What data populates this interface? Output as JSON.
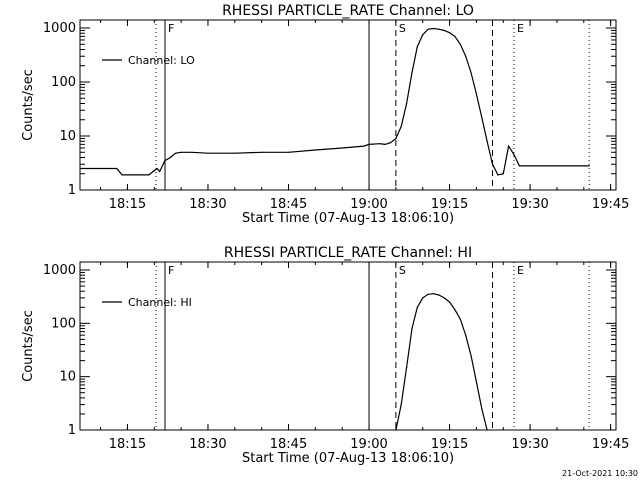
{
  "chart_data": [
    {
      "type": "line",
      "title": "RHESSI PARTICLE_RATE Channel: LO",
      "xlabel": "Start Time (07-Aug-13 18:06:10)",
      "ylabel": "Counts/sec",
      "yscale": "log",
      "ylim": [
        1,
        1000
      ],
      "xlim": [
        "18:06:10",
        "19:46:00"
      ],
      "x_ticks": [
        "18:15",
        "18:30",
        "18:45",
        "19:00",
        "19:15",
        "19:30",
        "19:45"
      ],
      "y_ticks": [
        "1",
        "10",
        "100",
        "1000"
      ],
      "legend": {
        "position": "top-left",
        "entries": [
          "Channel: LO"
        ]
      },
      "markers": [
        {
          "label": "",
          "time": "18:20:20",
          "style": "dotted"
        },
        {
          "label": "F",
          "time": "18:22:00",
          "style": "solid"
        },
        {
          "label": "",
          "time": "19:00:00",
          "style": "solid"
        },
        {
          "label": "S",
          "time": "19:05:00",
          "style": "dashed"
        },
        {
          "label": "",
          "time": "19:23:00",
          "style": "dashed"
        },
        {
          "label": "E",
          "time": "19:27:00",
          "style": "dotted"
        },
        {
          "label": "",
          "time": "19:41:00",
          "style": "dotted"
        }
      ],
      "series": [
        {
          "name": "Channel: LO",
          "x": [
            "18:06:10",
            "18:13:00",
            "18:14:00",
            "18:19:00",
            "18:20:30",
            "18:21:00",
            "18:22:00",
            "18:23:00",
            "18:24:00",
            "18:25:00",
            "18:27:00",
            "18:30:00",
            "18:35:00",
            "18:40:00",
            "18:45:00",
            "18:50:00",
            "18:55:00",
            "18:59:00",
            "19:00:00",
            "19:02:00",
            "19:03:00",
            "19:04:00",
            "19:05:00",
            "19:06:00",
            "19:07:00",
            "19:08:00",
            "19:09:00",
            "19:10:00",
            "19:11:00",
            "19:12:00",
            "19:13:00",
            "19:14:00",
            "19:15:00",
            "19:16:00",
            "19:17:00",
            "19:18:00",
            "19:19:00",
            "19:20:00",
            "19:21:00",
            "19:22:00",
            "19:23:00",
            "19:24:00",
            "19:25:00",
            "19:26:00",
            "19:27:00",
            "19:28:00",
            "19:30:00",
            "19:32:00",
            "19:34:00",
            "19:36:00",
            "19:38:00",
            "19:40:00",
            "19:41:00"
          ],
          "y": [
            2.5,
            2.5,
            1.9,
            1.9,
            2.5,
            2.2,
            3.5,
            4,
            4.8,
            5,
            5,
            4.8,
            4.8,
            5,
            5,
            5.5,
            6,
            6.5,
            7,
            7.2,
            7,
            7.5,
            9,
            15,
            40,
            150,
            450,
            750,
            950,
            980,
            950,
            900,
            820,
            700,
            500,
            300,
            150,
            60,
            22,
            8,
            3,
            1.9,
            2,
            6.5,
            4.5,
            2.8,
            2.8,
            2.8,
            2.8,
            2.8,
            2.8,
            2.8,
            2.8
          ]
        }
      ]
    },
    {
      "type": "line",
      "title": "RHESSI PARTICLE_RATE Channel: HI",
      "xlabel": "Start Time (07-Aug-13 18:06:10)",
      "ylabel": "Counts/sec",
      "yscale": "log",
      "ylim": [
        1,
        1000
      ],
      "xlim": [
        "18:06:10",
        "19:46:00"
      ],
      "x_ticks": [
        "18:15",
        "18:30",
        "18:45",
        "19:00",
        "19:15",
        "19:30",
        "19:45"
      ],
      "y_ticks": [
        "1",
        "10",
        "100",
        "1000"
      ],
      "legend": {
        "position": "top-left",
        "entries": [
          "Channel: HI"
        ]
      },
      "markers": [
        {
          "label": "",
          "time": "18:20:20",
          "style": "dotted"
        },
        {
          "label": "F",
          "time": "18:22:00",
          "style": "solid"
        },
        {
          "label": "",
          "time": "19:00:00",
          "style": "solid"
        },
        {
          "label": "S",
          "time": "19:05:00",
          "style": "dashed"
        },
        {
          "label": "",
          "time": "19:23:00",
          "style": "dashed"
        },
        {
          "label": "E",
          "time": "19:27:00",
          "style": "dotted"
        },
        {
          "label": "",
          "time": "19:41:00",
          "style": "dotted"
        }
      ],
      "series": [
        {
          "name": "Channel: HI",
          "x": [
            "19:05:00",
            "19:06:00",
            "19:07:00",
            "19:08:00",
            "19:09:00",
            "19:10:00",
            "19:11:00",
            "19:12:00",
            "19:13:00",
            "19:14:00",
            "19:15:00",
            "19:16:00",
            "19:17:00",
            "19:18:00",
            "19:19:00",
            "19:20:00",
            "19:21:00",
            "19:22:00"
          ],
          "y": [
            1,
            3,
            15,
            80,
            200,
            300,
            350,
            360,
            340,
            300,
            250,
            180,
            120,
            60,
            25,
            8,
            2.5,
            1
          ]
        }
      ]
    }
  ],
  "timestamp": "21-Oct-2021 10:30"
}
